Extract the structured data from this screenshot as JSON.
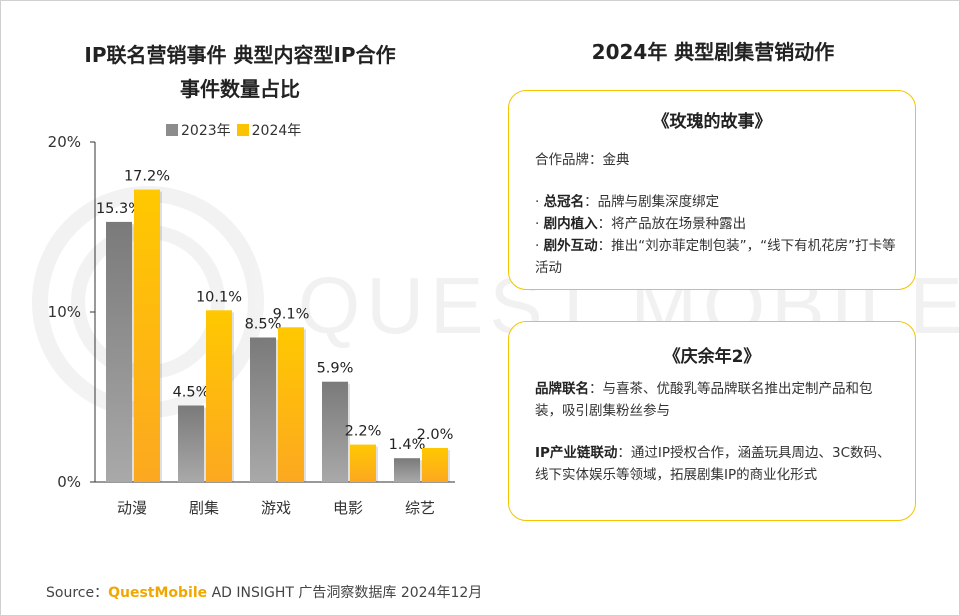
{
  "chart_title": [
    "IP联名营销事件 典型内容型IP合作",
    "事件数量占比"
  ],
  "legend": [
    {
      "name": "2023年",
      "color": "#8c8c8c"
    },
    {
      "name": "2024年",
      "color": "#fcc400"
    }
  ],
  "watermark": "QUEST MOBILE",
  "chart_data": {
    "type": "bar",
    "categories": [
      "动漫",
      "剧集",
      "游戏",
      "电影",
      "综艺"
    ],
    "series": [
      {
        "name": "2023年",
        "values": [
          15.3,
          4.5,
          8.5,
          5.9,
          1.4
        ],
        "labels": [
          "15.3%",
          "4.5%",
          "8.5%",
          "5.9%",
          "1.4%"
        ]
      },
      {
        "name": "2024年",
        "values": [
          17.2,
          10.1,
          9.1,
          2.2,
          2.0
        ],
        "labels": [
          "17.2%",
          "10.1%",
          "9.1%",
          "2.2%",
          "2.0%"
        ]
      }
    ],
    "yticks": [
      "0%",
      "10%",
      "20%"
    ],
    "ylim": [
      0,
      20
    ],
    "grid": false,
    "legend_position": "top-center"
  },
  "right_title": "2024年 典型剧集营销动作",
  "cards": [
    {
      "title": "《玫瑰的故事》",
      "brand": "合作品牌：金典",
      "bullets": [
        {
          "prefix": "· ",
          "key": "总冠名",
          "text": "：品牌与剧集深度绑定"
        },
        {
          "prefix": "· ",
          "key": "剧内植入",
          "text": "：将产品放在场景种露出"
        },
        {
          "prefix": "· ",
          "key": "剧外互动",
          "text": "：推出“刘亦菲定制包装”，“线下有机花房”打卡等活动"
        }
      ]
    },
    {
      "title": "《庆余年2》",
      "items": [
        {
          "key": "品牌联名",
          "text": "：与喜茶、优酸乳等品牌联名推出定制产品和包装，吸引剧集粉丝参与"
        },
        {
          "key": "IP产业链联动",
          "text": "：通过IP授权合作，涵盖玩具周边、3C数码、线下实体娱乐等领域，拓展剧集IP的商业化形式"
        }
      ]
    }
  ],
  "source": {
    "label": "Source：",
    "brand": "QuestMobile",
    "text": " AD INSIGHT 广告洞察数据库 2024年12月"
  }
}
